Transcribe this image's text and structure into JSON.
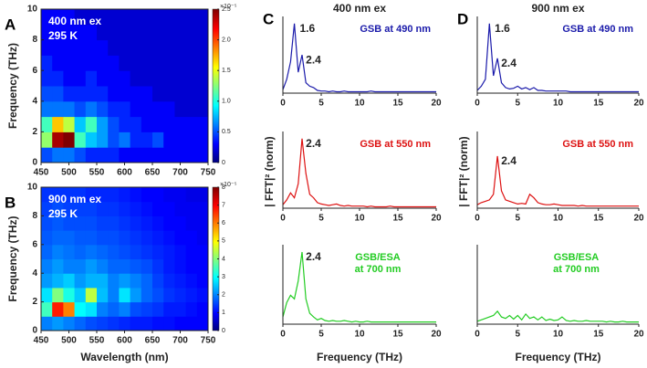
{
  "chart_data": [
    {
      "type": "heatmap",
      "panel": "A",
      "ylabel": "Frequency (THz)",
      "annotations": [
        "400 nm ex",
        "295 K"
      ],
      "x": [
        460,
        480,
        500,
        520,
        540,
        560,
        580,
        600,
        620,
        640,
        660,
        680,
        700,
        720,
        740
      ],
      "y": [
        0.5,
        1.5,
        2.5,
        3.5,
        4.5,
        5.5,
        6.5,
        7.5,
        8.5,
        9.5
      ],
      "values": [
        [
          0.5,
          0.6,
          0.6,
          0.5,
          0.4,
          0.4,
          0.4,
          0.3,
          0.3,
          0.3,
          0.3,
          0.3,
          0.3,
          0.3,
          0.3
        ],
        [
          1.3,
          2.4,
          2.5,
          1.1,
          0.8,
          0.7,
          0.5,
          0.6,
          0.4,
          0.4,
          0.5,
          0.3,
          0.3,
          0.3,
          0.3
        ],
        [
          1.1,
          1.7,
          1.4,
          0.8,
          1.1,
          0.7,
          0.5,
          0.4,
          0.4,
          0.3,
          0.3,
          0.3,
          0.3,
          0.3,
          0.3
        ],
        [
          0.6,
          0.6,
          0.6,
          0.5,
          0.6,
          0.5,
          0.4,
          0.4,
          0.3,
          0.3,
          0.3,
          0.3,
          0.2,
          0.2,
          0.2
        ],
        [
          0.5,
          0.5,
          0.4,
          0.4,
          0.4,
          0.4,
          0.3,
          0.3,
          0.3,
          0.3,
          0.2,
          0.2,
          0.2,
          0.2,
          0.2
        ],
        [
          0.4,
          0.4,
          0.3,
          0.3,
          0.4,
          0.3,
          0.3,
          0.3,
          0.2,
          0.2,
          0.2,
          0.2,
          0.2,
          0.2,
          0.2
        ],
        [
          0.4,
          0.3,
          0.3,
          0.3,
          0.3,
          0.3,
          0.3,
          0.2,
          0.2,
          0.2,
          0.2,
          0.2,
          0.2,
          0.2,
          0.2
        ],
        [
          0.3,
          0.3,
          0.3,
          0.3,
          0.3,
          0.3,
          0.2,
          0.2,
          0.2,
          0.2,
          0.2,
          0.2,
          0.2,
          0.2,
          0.2
        ],
        [
          0.3,
          0.3,
          0.3,
          0.3,
          0.3,
          0.2,
          0.2,
          0.2,
          0.2,
          0.2,
          0.2,
          0.2,
          0.2,
          0.2,
          0.2
        ],
        [
          0.3,
          0.3,
          0.3,
          0.2,
          0.2,
          0.2,
          0.2,
          0.2,
          0.2,
          0.2,
          0.2,
          0.2,
          0.2,
          0.2,
          0.2
        ]
      ],
      "xlim": [
        450,
        750
      ],
      "xticks": [
        450,
        500,
        550,
        600,
        650,
        700,
        750
      ],
      "ylim": [
        0,
        10
      ],
      "yticks": [
        0,
        2,
        4,
        6,
        8,
        10
      ],
      "clim": [
        0,
        2.5
      ],
      "cticks": [
        0,
        0.5,
        {
          "value": 1,
          "label": "1.0"
        },
        1.5,
        {
          "value": 2,
          "label": "2.0"
        },
        2.5
      ],
      "cbar_exponent": "×10⁻⁵"
    },
    {
      "type": "heatmap",
      "panel": "B",
      "ylabel": "Frequency (THz)",
      "xlabel": "Wavelength (nm)",
      "annotations": [
        "900 nm ex",
        "295 K"
      ],
      "x": [
        460,
        480,
        500,
        520,
        540,
        560,
        580,
        600,
        620,
        640,
        660,
        680,
        700,
        720,
        740
      ],
      "y": [
        0.5,
        1.5,
        2.5,
        3.5,
        4.5,
        5.5,
        6.5,
        7.5,
        8.5,
        9.5
      ],
      "values": [
        [
          2.0,
          2.2,
          2.0,
          1.8,
          1.6,
          1.5,
          1.4,
          1.3,
          1.2,
          1.2,
          1.1,
          1.1,
          1.0,
          1.0,
          1.0
        ],
        [
          3.5,
          6.8,
          6.0,
          3.0,
          2.8,
          2.0,
          1.8,
          2.0,
          1.6,
          1.5,
          1.4,
          1.2,
          1.2,
          1.1,
          1.0
        ],
        [
          2.8,
          4.0,
          3.2,
          2.6,
          4.5,
          2.5,
          2.0,
          2.8,
          2.2,
          1.8,
          1.6,
          1.4,
          1.3,
          1.2,
          1.1
        ],
        [
          2.2,
          2.4,
          2.6,
          2.2,
          2.4,
          2.4,
          2.0,
          2.2,
          2.0,
          1.8,
          1.5,
          1.3,
          1.2,
          1.1,
          1.0
        ],
        [
          2.0,
          2.2,
          2.0,
          2.0,
          2.2,
          2.0,
          1.8,
          1.8,
          1.7,
          1.6,
          1.4,
          1.2,
          1.1,
          1.0,
          1.0
        ],
        [
          1.8,
          2.0,
          1.9,
          1.8,
          1.9,
          1.8,
          1.7,
          1.6,
          1.5,
          1.4,
          1.3,
          1.2,
          1.1,
          1.0,
          1.0
        ],
        [
          1.7,
          1.8,
          1.8,
          1.7,
          1.7,
          1.6,
          1.6,
          1.5,
          1.4,
          1.3,
          1.2,
          1.1,
          1.0,
          1.0,
          0.9
        ],
        [
          1.6,
          1.7,
          1.6,
          1.6,
          1.6,
          1.5,
          1.5,
          1.4,
          1.3,
          1.2,
          1.1,
          1.0,
          1.0,
          0.9,
          0.9
        ],
        [
          1.5,
          1.6,
          1.5,
          1.5,
          1.5,
          1.4,
          1.4,
          1.3,
          1.2,
          1.1,
          1.0,
          1.0,
          0.9,
          0.9,
          0.9
        ],
        [
          1.4,
          1.4,
          1.4,
          1.4,
          1.3,
          1.3,
          1.3,
          1.2,
          1.1,
          1.0,
          1.0,
          0.9,
          0.9,
          0.8,
          0.8
        ]
      ],
      "xlim": [
        450,
        750
      ],
      "xticks": [
        450,
        500,
        550,
        600,
        650,
        700,
        750
      ],
      "ylim": [
        0,
        10
      ],
      "yticks": [
        0,
        2,
        4,
        6,
        8,
        10
      ],
      "clim": [
        0,
        8
      ],
      "cticks": [
        0,
        1,
        2,
        3,
        4,
        5,
        6,
        7,
        8
      ],
      "cbar_exponent": "×10⁻⁵"
    },
    {
      "type": "line",
      "panel": "C",
      "title": "400 nm ex",
      "peak_labels": [
        1.6,
        2.4
      ],
      "x": [
        0,
        0.5,
        1,
        1.5,
        2,
        2.5,
        3,
        3.5,
        4,
        4.5,
        5,
        5.5,
        6,
        6.5,
        7,
        7.5,
        8,
        8.5,
        9,
        9.5,
        10,
        10.5,
        11,
        11.5,
        12,
        12.5,
        13,
        13.5,
        14,
        14.5,
        15,
        15.5,
        16,
        16.5,
        17,
        17.5,
        18,
        18.5,
        19,
        19.5,
        20
      ],
      "series": [
        {
          "name": [
            "GSB at 490 nm"
          ],
          "color": "#1a1aaa",
          "values": [
            0.05,
            0.2,
            0.45,
            1.0,
            0.3,
            0.55,
            0.15,
            0.1,
            0.08,
            0.04,
            0.03,
            0.03,
            0.02,
            0.03,
            0.02,
            0.02,
            0.03,
            0.02,
            0.02,
            0.02,
            0.02,
            0.02,
            0.02,
            0.03,
            0.02,
            0.02,
            0.02,
            0.02,
            0.02,
            0.02,
            0.02,
            0.02,
            0.02,
            0.02,
            0.02,
            0.02,
            0.02,
            0.02,
            0.02,
            0.02,
            0.02
          ]
        }
      ],
      "xlim": [
        0,
        20
      ],
      "xticks": [
        0,
        5,
        10,
        15,
        20
      ],
      "ylim": [
        0,
        1.05
      ]
    },
    {
      "type": "line",
      "ylabel": "| FFT|² (norm)",
      "peak_labels": [
        2.4
      ],
      "x": [
        0,
        0.5,
        1,
        1.5,
        2,
        2.5,
        3,
        3.5,
        4,
        4.5,
        5,
        5.5,
        6,
        6.5,
        7,
        7.5,
        8,
        8.5,
        9,
        9.5,
        10,
        10.5,
        11,
        11.5,
        12,
        12.5,
        13,
        13.5,
        14,
        14.5,
        15,
        15.5,
        16,
        16.5,
        17,
        17.5,
        18,
        18.5,
        19,
        19.5,
        20
      ],
      "series": [
        {
          "name": [
            "GSB at 550 nm"
          ],
          "color": "#dd1111",
          "values": [
            0.05,
            0.12,
            0.22,
            0.15,
            0.35,
            1.0,
            0.5,
            0.2,
            0.15,
            0.08,
            0.06,
            0.05,
            0.04,
            0.05,
            0.06,
            0.04,
            0.03,
            0.04,
            0.03,
            0.03,
            0.03,
            0.03,
            0.02,
            0.03,
            0.02,
            0.02,
            0.02,
            0.02,
            0.03,
            0.02,
            0.02,
            0.02,
            0.02,
            0.02,
            0.02,
            0.02,
            0.02,
            0.02,
            0.02,
            0.02,
            0.02
          ]
        }
      ],
      "xlim": [
        0,
        20
      ],
      "xticks": [
        0,
        5,
        10,
        15,
        20
      ],
      "ylim": [
        0,
        1.05
      ]
    },
    {
      "type": "line",
      "xlabel": "Frequency (THz)",
      "peak_labels": [
        2.4
      ],
      "x": [
        0,
        0.5,
        1,
        1.5,
        2,
        2.5,
        3,
        3.5,
        4,
        4.5,
        5,
        5.5,
        6,
        6.5,
        7,
        7.5,
        8,
        8.5,
        9,
        9.5,
        10,
        10.5,
        11,
        11.5,
        12,
        12.5,
        13,
        13.5,
        14,
        14.5,
        15,
        15.5,
        16,
        16.5,
        17,
        17.5,
        18,
        18.5,
        19,
        19.5,
        20
      ],
      "series": [
        {
          "name": [
            "GSB/ESA",
            "at 700 nm"
          ],
          "color": "#22cc22",
          "values": [
            0.1,
            0.3,
            0.4,
            0.35,
            0.6,
            1.0,
            0.35,
            0.15,
            0.1,
            0.06,
            0.08,
            0.05,
            0.04,
            0.05,
            0.04,
            0.04,
            0.05,
            0.04,
            0.03,
            0.04,
            0.03,
            0.03,
            0.04,
            0.03,
            0.03,
            0.03,
            0.03,
            0.03,
            0.03,
            0.03,
            0.03,
            0.03,
            0.03,
            0.03,
            0.03,
            0.03,
            0.03,
            0.03,
            0.03,
            0.03,
            0.03
          ]
        }
      ],
      "xlim": [
        0,
        20
      ],
      "xticks": [
        0,
        5,
        10,
        15,
        20
      ],
      "ylim": [
        0,
        1.05
      ]
    },
    {
      "type": "line",
      "panel": "D",
      "title": "900 nm ex",
      "peak_labels": [
        1.6,
        2.4
      ],
      "x": [
        0,
        0.5,
        1,
        1.5,
        2,
        2.5,
        3,
        3.5,
        4,
        4.5,
        5,
        5.5,
        6,
        6.5,
        7,
        7.5,
        8,
        8.5,
        9,
        9.5,
        10,
        10.5,
        11,
        11.5,
        12,
        12.5,
        13,
        13.5,
        14,
        14.5,
        15,
        15.5,
        16,
        16.5,
        17,
        17.5,
        18,
        18.5,
        19,
        19.5,
        20
      ],
      "series": [
        {
          "name": [
            "GSB at 490 nm"
          ],
          "color": "#1a1aaa",
          "values": [
            0.04,
            0.1,
            0.2,
            1.0,
            0.25,
            0.5,
            0.15,
            0.08,
            0.06,
            0.07,
            0.1,
            0.06,
            0.08,
            0.05,
            0.08,
            0.04,
            0.04,
            0.03,
            0.03,
            0.03,
            0.03,
            0.03,
            0.03,
            0.02,
            0.02,
            0.02,
            0.02,
            0.02,
            0.02,
            0.02,
            0.02,
            0.02,
            0.02,
            0.02,
            0.02,
            0.02,
            0.02,
            0.02,
            0.02,
            0.02,
            0.02
          ]
        }
      ],
      "xlim": [
        0,
        20
      ],
      "xticks": [
        0,
        5,
        10,
        15,
        20
      ],
      "ylim": [
        0,
        1.05
      ]
    },
    {
      "type": "line",
      "ylabel": "| FFT|² (norm)",
      "peak_labels": [
        2.4
      ],
      "x": [
        0,
        0.5,
        1,
        1.5,
        2,
        2.5,
        3,
        3.5,
        4,
        4.5,
        5,
        5.5,
        6,
        6.5,
        7,
        7.5,
        8,
        8.5,
        9,
        9.5,
        10,
        10.5,
        11,
        11.5,
        12,
        12.5,
        13,
        13.5,
        14,
        14.5,
        15,
        15.5,
        16,
        16.5,
        17,
        17.5,
        18,
        18.5,
        19,
        19.5,
        20
      ],
      "series": [
        {
          "name": [
            "GSB at 550 nm"
          ],
          "color": "#dd1111",
          "values": [
            0.05,
            0.08,
            0.1,
            0.12,
            0.2,
            0.75,
            0.25,
            0.12,
            0.1,
            0.08,
            0.06,
            0.07,
            0.06,
            0.2,
            0.15,
            0.08,
            0.06,
            0.05,
            0.05,
            0.06,
            0.05,
            0.04,
            0.04,
            0.04,
            0.04,
            0.03,
            0.04,
            0.03,
            0.03,
            0.03,
            0.03,
            0.03,
            0.03,
            0.03,
            0.03,
            0.03,
            0.03,
            0.03,
            0.03,
            0.03,
            0.03
          ]
        }
      ],
      "xlim": [
        0,
        20
      ],
      "xticks": [
        0,
        5,
        10,
        15,
        20
      ],
      "ylim": [
        0,
        1.05
      ]
    },
    {
      "type": "line",
      "xlabel": "Frequency (THz)",
      "peak_labels": [],
      "x": [
        0,
        0.5,
        1,
        1.5,
        2,
        2.5,
        3,
        3.5,
        4,
        4.5,
        5,
        5.5,
        6,
        6.5,
        7,
        7.5,
        8,
        8.5,
        9,
        9.5,
        10,
        10.5,
        11,
        11.5,
        12,
        12.5,
        13,
        13.5,
        14,
        14.5,
        15,
        15.5,
        16,
        16.5,
        17,
        17.5,
        18,
        18.5,
        19,
        19.5,
        20
      ],
      "series": [
        {
          "name": [
            "GSB/ESA",
            "at 700 nm"
          ],
          "color": "#22cc22",
          "values": [
            0.04,
            0.06,
            0.08,
            0.1,
            0.12,
            0.18,
            0.1,
            0.08,
            0.12,
            0.07,
            0.12,
            0.06,
            0.14,
            0.08,
            0.1,
            0.06,
            0.1,
            0.05,
            0.07,
            0.05,
            0.06,
            0.1,
            0.05,
            0.04,
            0.05,
            0.04,
            0.04,
            0.05,
            0.04,
            0.04,
            0.04,
            0.04,
            0.03,
            0.04,
            0.03,
            0.03,
            0.04,
            0.03,
            0.03,
            0.03,
            0.03
          ]
        }
      ],
      "xlim": [
        0,
        20
      ],
      "xticks": [
        0,
        5,
        10,
        15,
        20
      ],
      "ylim": [
        0,
        1.05
      ]
    }
  ]
}
